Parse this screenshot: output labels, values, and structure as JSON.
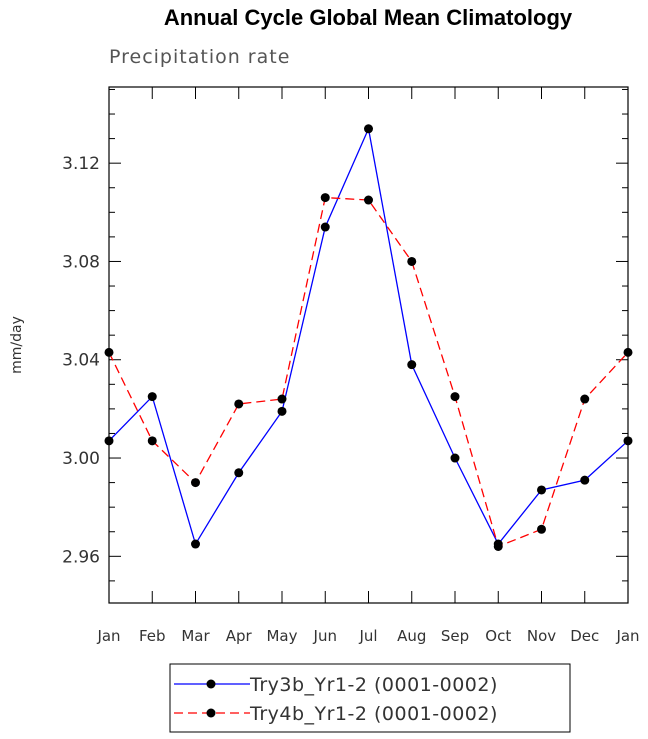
{
  "chart_data": {
    "type": "line",
    "title": "Annual Cycle Global Mean Climatology",
    "subtitle": "Precipitation rate",
    "xlabel": "",
    "ylabel": "mm/day",
    "categories": [
      "Jan",
      "Feb",
      "Mar",
      "Apr",
      "May",
      "Jun",
      "Jul",
      "Aug",
      "Sep",
      "Oct",
      "Nov",
      "Dec",
      "Jan"
    ],
    "y_ticks": [
      "2.96",
      "3.00",
      "3.04",
      "3.08",
      "3.12"
    ],
    "ylim": [
      2.941,
      3.151
    ],
    "series": [
      {
        "name": "Try3b_Yr1-2 (0001-0002)",
        "color": "#0000ff",
        "dash": "solid",
        "values": [
          3.007,
          3.025,
          2.965,
          2.994,
          3.019,
          3.094,
          3.134,
          3.038,
          3.0,
          2.965,
          2.987,
          2.991,
          3.007
        ]
      },
      {
        "name": "Try4b_Yr1-2 (0001-0002)",
        "color": "#ff0000",
        "dash": "dashed",
        "values": [
          3.043,
          3.007,
          2.99,
          3.022,
          3.024,
          3.106,
          3.105,
          3.08,
          3.025,
          2.964,
          2.971,
          3.024,
          3.043
        ]
      }
    ]
  }
}
